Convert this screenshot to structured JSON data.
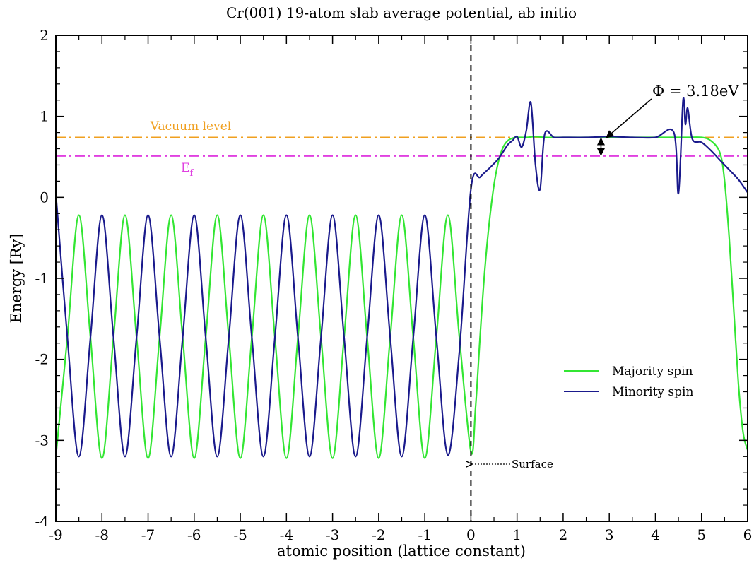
{
  "chart_data": {
    "type": "line",
    "title": "Cr(001) 19-atom slab average potential, ab initio",
    "xlabel": "atomic position (lattice constant)",
    "ylabel": "Energy [Ry]",
    "xlim": [
      -9,
      6
    ],
    "ylim": [
      -4,
      2
    ],
    "x_ticks": [
      "-9",
      "-8",
      "-7",
      "-6",
      "-5",
      "-4",
      "-3",
      "-2",
      "-1",
      "0",
      "1",
      "2",
      "3",
      "4",
      "5",
      "6"
    ],
    "y_ticks": [
      "-4",
      "-3",
      "-2",
      "-1",
      "0",
      "1",
      "2"
    ],
    "grid": false,
    "legend_position": "bottom-right",
    "series": [
      {
        "name": "Majority spin",
        "color": "#33e633",
        "x": [
          -9.0,
          -8.75,
          -8.5,
          -8.25,
          -8.0,
          -7.75,
          -7.5,
          -7.25,
          -7.0,
          -6.75,
          -6.5,
          -6.25,
          -6.0,
          -5.75,
          -5.5,
          -5.25,
          -5.0,
          -4.75,
          -4.5,
          -4.25,
          -4.0,
          -3.75,
          -3.5,
          -3.25,
          -3.0,
          -2.75,
          -2.5,
          -2.25,
          -2.0,
          -1.75,
          -1.5,
          -1.25,
          -1.0,
          -0.75,
          -0.5,
          -0.25,
          0.0,
          0.1,
          0.2,
          0.3,
          0.4,
          0.5,
          0.6,
          0.7,
          0.8,
          0.9,
          1.0,
          1.2,
          1.4,
          1.6,
          1.8,
          2.0,
          2.5,
          3.0,
          3.5,
          4.0,
          4.5,
          4.7,
          5.0,
          5.2,
          5.4,
          5.5,
          5.6,
          5.7,
          5.8,
          5.9,
          6.0
        ],
        "y": [
          -3.2,
          -1.73,
          -0.22,
          -1.73,
          -3.22,
          -1.73,
          -0.22,
          -1.73,
          -3.22,
          -1.73,
          -0.22,
          -1.73,
          -3.22,
          -1.73,
          -0.22,
          -1.73,
          -3.22,
          -1.73,
          -0.22,
          -1.73,
          -3.22,
          -1.73,
          -0.22,
          -1.73,
          -3.22,
          -1.73,
          -0.22,
          -1.73,
          -3.22,
          -1.73,
          -0.22,
          -1.73,
          -3.22,
          -1.73,
          -0.22,
          -1.73,
          -3.14,
          -2.6,
          -1.7,
          -0.9,
          -0.3,
          0.15,
          0.45,
          0.62,
          0.7,
          0.73,
          0.74,
          0.74,
          0.75,
          0.74,
          0.74,
          0.74,
          0.74,
          0.74,
          0.74,
          0.74,
          0.74,
          0.74,
          0.74,
          0.7,
          0.55,
          0.2,
          -0.5,
          -1.4,
          -2.3,
          -2.9,
          -3.12
        ]
      },
      {
        "name": "Minority spin",
        "color": "#1a1a8c",
        "x": [
          -9.0,
          -8.75,
          -8.5,
          -8.25,
          -8.0,
          -7.75,
          -7.5,
          -7.25,
          -7.0,
          -6.75,
          -6.5,
          -6.25,
          -6.0,
          -5.75,
          -5.5,
          -5.25,
          -5.0,
          -4.75,
          -4.5,
          -4.25,
          -4.0,
          -3.75,
          -3.5,
          -3.25,
          -3.0,
          -2.75,
          -2.5,
          -2.25,
          -2.0,
          -1.75,
          -1.5,
          -1.25,
          -1.0,
          -0.75,
          -0.5,
          -0.25,
          0.0,
          0.2,
          0.4,
          0.6,
          0.8,
          0.9,
          1.0,
          1.1,
          1.2,
          1.3,
          1.4,
          1.5,
          1.6,
          1.8,
          2.0,
          2.5,
          3.0,
          3.5,
          4.0,
          4.4,
          4.5,
          4.6,
          4.65,
          4.7,
          4.8,
          5.0,
          5.2,
          5.4,
          5.6,
          5.8,
          6.0
        ],
        "y": [
          0.05,
          -1.73,
          -3.2,
          -1.73,
          -0.22,
          -1.73,
          -3.2,
          -1.73,
          -0.22,
          -1.73,
          -3.2,
          -1.73,
          -0.22,
          -1.73,
          -3.2,
          -1.73,
          -0.22,
          -1.73,
          -3.2,
          -1.73,
          -0.22,
          -1.73,
          -3.2,
          -1.73,
          -0.22,
          -1.73,
          -3.2,
          -1.73,
          -0.22,
          -1.73,
          -3.2,
          -1.73,
          -0.22,
          -1.73,
          -3.18,
          -1.9,
          0.1,
          0.25,
          0.36,
          0.48,
          0.65,
          0.7,
          0.75,
          0.62,
          0.82,
          1.17,
          0.4,
          0.1,
          0.78,
          0.74,
          0.74,
          0.74,
          0.75,
          0.74,
          0.74,
          0.8,
          0.05,
          1.2,
          0.9,
          1.1,
          0.72,
          0.68,
          0.58,
          0.46,
          0.34,
          0.22,
          0.06
        ]
      }
    ],
    "reference_lines": [
      {
        "label": "Vacuum level",
        "y": 0.74,
        "color": "#f0a020",
        "style": "dash-dot"
      },
      {
        "label": "E",
        "label_sub": "f",
        "y": 0.51,
        "color": "#e040e0",
        "style": "dash-dot"
      }
    ],
    "annotations": {
      "work_function": "Φ = 3.18eV",
      "surface": "Surface",
      "surface_x": 0
    }
  }
}
